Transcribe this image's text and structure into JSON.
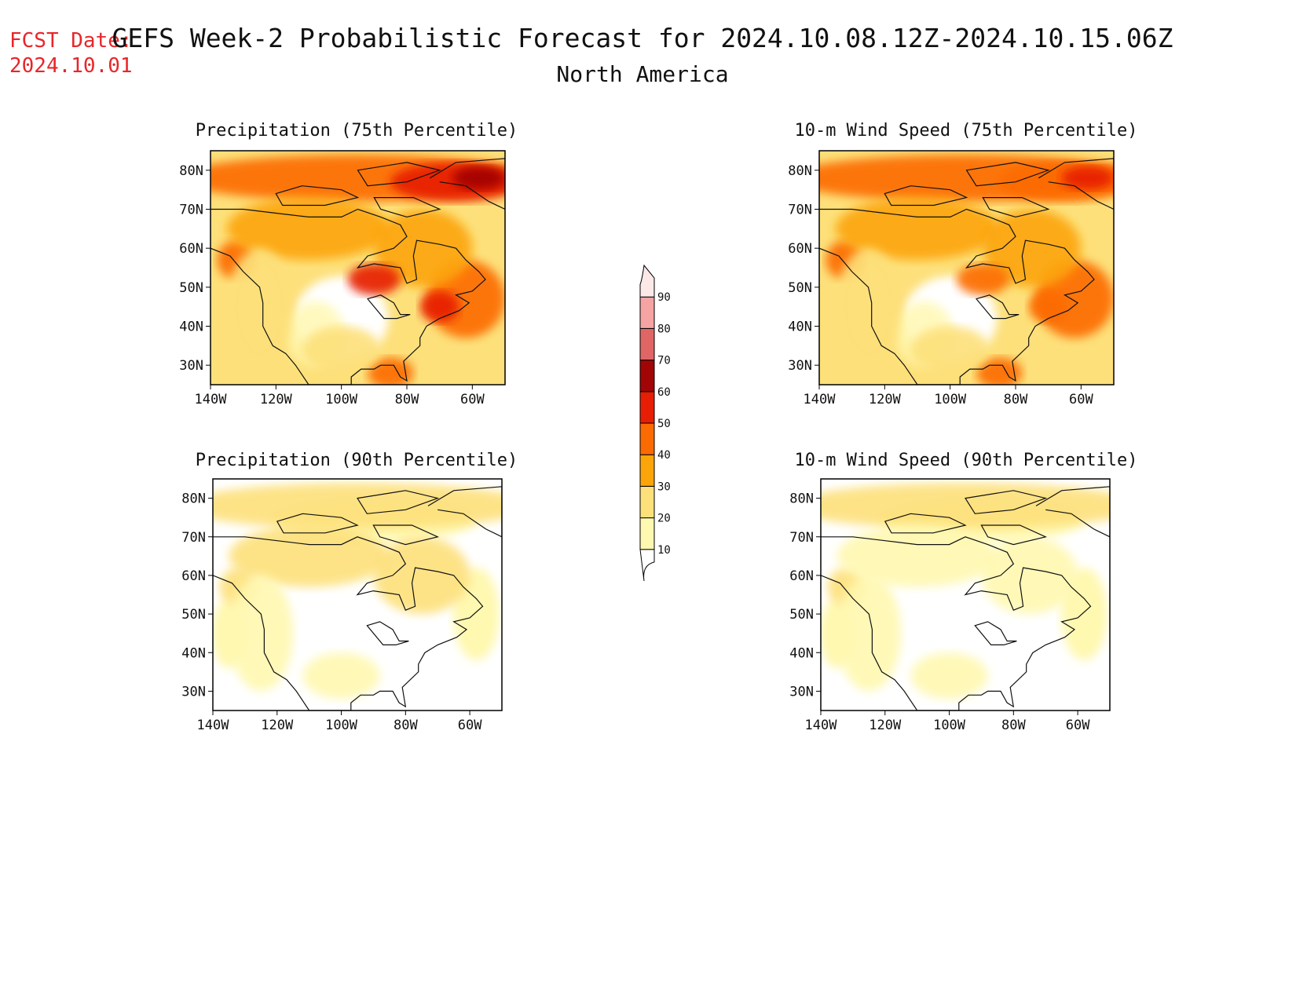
{
  "fcst": {
    "label": "FCST Date:",
    "date": "2024.10.01"
  },
  "header": {
    "title": "GEFS Week-2 Probabilistic Forecast for 2024.10.08.12Z-2024.10.15.06Z",
    "subtitle": "North America"
  },
  "axes": {
    "lat_labels": [
      "80N",
      "70N",
      "60N",
      "50N",
      "40N",
      "30N"
    ],
    "lat_values": [
      80,
      70,
      60,
      50,
      40,
      30
    ],
    "lon_labels": [
      "140W",
      "120W",
      "100W",
      "80W",
      "60W"
    ],
    "lon_values": [
      -140,
      -120,
      -100,
      -80,
      -60
    ],
    "lon_range": [
      -140,
      -50
    ],
    "lat_range": [
      25,
      85
    ]
  },
  "panels": [
    {
      "id": "precip75",
      "title": "Precipitation (75th Percentile)",
      "intensity": 0.95
    },
    {
      "id": "wind75",
      "title": "10-m Wind Speed (75th Percentile)",
      "intensity": 0.85
    },
    {
      "id": "precip90",
      "title": "Precipitation (90th Percentile)",
      "intensity": 0.25
    },
    {
      "id": "wind90",
      "title": "10-m Wind Speed (90th Percentile)",
      "intensity": 0.22
    }
  ],
  "colorbar": {
    "levels": [
      "10",
      "20",
      "30",
      "40",
      "50",
      "60",
      "70",
      "80",
      "90"
    ],
    "colors": [
      "#fff8b0",
      "#fde07a",
      "#fca50a",
      "#fc6a03",
      "#e61e05",
      "#a10505",
      "#e06565",
      "#f5a3a3",
      "#fde8e8"
    ]
  }
}
